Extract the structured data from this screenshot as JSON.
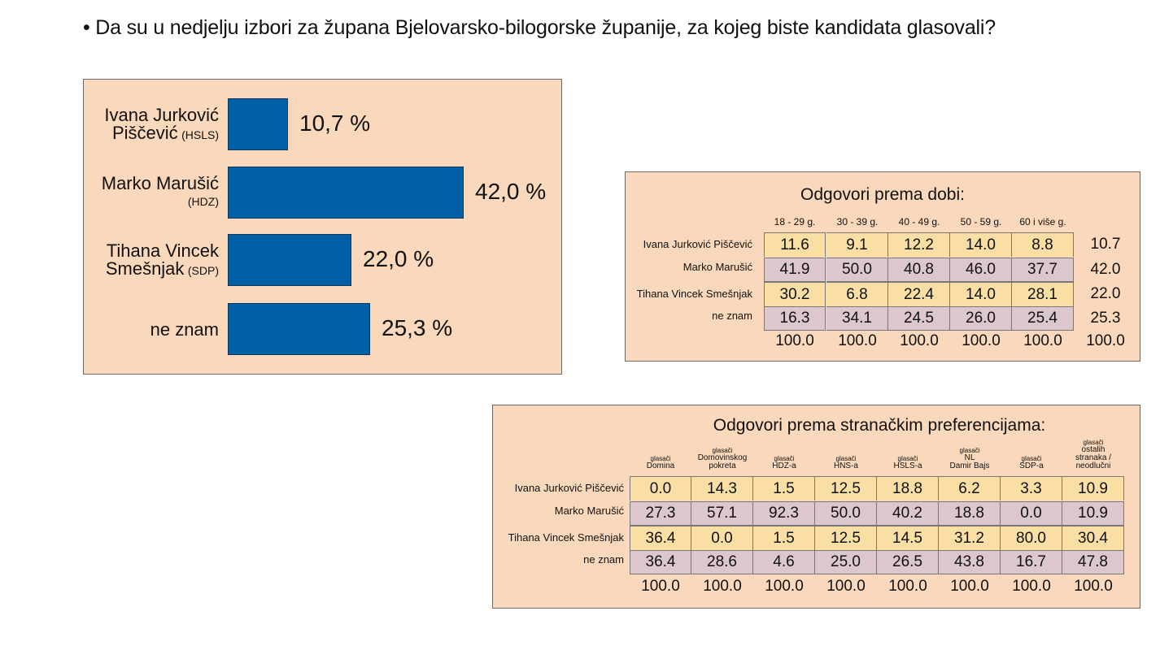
{
  "question": "• Da su u nedjelju izbori za župana Bjelovarsko-bilogorske županije, za kojeg biste kandidata glasovali?",
  "colors": {
    "panel": "#fad8bc",
    "bar": "#0060a5",
    "row_yellow": "#f9dfa3",
    "row_pink": "#dcc7cc"
  },
  "chart_data": [
    {
      "type": "bar",
      "orientation": "horizontal",
      "categories": [
        {
          "line1": "Ivana Jurković",
          "line2": "Piščević",
          "party": "(HSLS)"
        },
        {
          "line1": "Marko Marušić",
          "line2": "",
          "party": "(HDZ)"
        },
        {
          "line1": "Tihana Vincek",
          "line2": "Smešnjak",
          "party": "(SDP)"
        },
        {
          "line1": "ne znam",
          "line2": "",
          "party": ""
        }
      ],
      "values": [
        10.7,
        42.0,
        22.0,
        25.3
      ],
      "value_labels": [
        "10,7 %",
        "42,0 %",
        "22,0 %",
        "25,3 %"
      ]
    },
    {
      "type": "table",
      "title": "Odgovori prema dobi:",
      "columns": [
        "18 - 29 g.",
        "30 - 39 g.",
        "40 - 49 g.",
        "50 - 59 g.",
        "60 i više g."
      ],
      "rows": [
        "Ivana Jurković Piščević",
        "Marko Marušić",
        "Tihana Vincek Smešnjak",
        "ne znam"
      ],
      "values": [
        [
          "11.6",
          "9.1",
          "12.2",
          "14.0",
          "8.8"
        ],
        [
          "41.9",
          "50.0",
          "40.8",
          "46.0",
          "37.7"
        ],
        [
          "30.2",
          "6.8",
          "22.4",
          "14.0",
          "28.1"
        ],
        [
          "16.3",
          "34.1",
          "24.5",
          "26.0",
          "25.4"
        ]
      ],
      "row_totals": [
        "10.7",
        "42.0",
        "22.0",
        "25.3"
      ],
      "column_totals": [
        "100.0",
        "100.0",
        "100.0",
        "100.0",
        "100.0",
        "100.0"
      ]
    },
    {
      "type": "table",
      "title": "Odgovori prema stranačkim preferencijama:",
      "columns": [
        {
          "small": "glasači",
          "lines": [
            "Domina"
          ]
        },
        {
          "small": "glasači",
          "lines": [
            "Domovinskog",
            "pokreta"
          ]
        },
        {
          "small": "glasači",
          "lines": [
            "HDZ-a"
          ]
        },
        {
          "small": "glasači",
          "lines": [
            "HNS-a"
          ]
        },
        {
          "small": "glasači",
          "lines": [
            "HSLS-a"
          ]
        },
        {
          "small": "glasači",
          "lines": [
            "NL",
            "Damir Bajs"
          ]
        },
        {
          "small": "glasači",
          "lines": [
            "SDP-a"
          ]
        },
        {
          "small": "glasači",
          "lines": [
            "ostalih",
            "stranaka /",
            "neodlučni"
          ]
        }
      ],
      "rows": [
        "Ivana Jurković Piščević",
        "Marko Marušić",
        "Tihana Vincek Smešnjak",
        "ne znam"
      ],
      "values": [
        [
          "0.0",
          "14.3",
          "1.5",
          "12.5",
          "18.8",
          "6.2",
          "3.3",
          "10.9"
        ],
        [
          "27.3",
          "57.1",
          "92.3",
          "50.0",
          "40.2",
          "18.8",
          "0.0",
          "10.9"
        ],
        [
          "36.4",
          "0.0",
          "1.5",
          "12.5",
          "14.5",
          "31.2",
          "80.0",
          "30.4"
        ],
        [
          "36.4",
          "28.6",
          "4.6",
          "25.0",
          "26.5",
          "43.8",
          "16.7",
          "47.8"
        ]
      ],
      "column_totals": [
        "100.0",
        "100.0",
        "100.0",
        "100.0",
        "100.0",
        "100.0",
        "100.0",
        "100.0"
      ]
    }
  ]
}
